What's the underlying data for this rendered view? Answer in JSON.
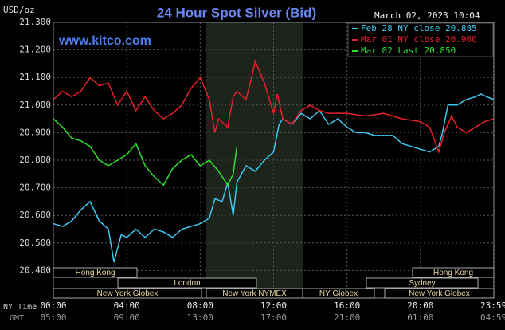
{
  "chart_data": {
    "type": "line",
    "title": "24 Hour Spot Silver (Bid)",
    "unit_label": "USD/oz",
    "timestamp": "March 02, 2023 10:04",
    "watermark": "www.kitco.com",
    "x_row_label": "NY Time",
    "x2_row_label": "GMT",
    "xlim": [
      0,
      24
    ],
    "xticks": [
      {
        "value": 0,
        "label": "00:00"
      },
      {
        "value": 4,
        "label": "04:00"
      },
      {
        "value": 8,
        "label": "08:00"
      },
      {
        "value": 12,
        "label": "12:00"
      },
      {
        "value": 16,
        "label": "16:00"
      },
      {
        "value": 20,
        "label": "20:00"
      },
      {
        "value": 23.98,
        "label": "23:59"
      }
    ],
    "x2ticks": [
      {
        "value": 0,
        "label": "05:00"
      },
      {
        "value": 4,
        "label": "09:00"
      },
      {
        "value": 8,
        "label": "13:00"
      },
      {
        "value": 12,
        "label": "17:00"
      },
      {
        "value": 16,
        "label": "21:00"
      },
      {
        "value": 20,
        "label": "01:00"
      },
      {
        "value": 23.98,
        "label": "04:59"
      }
    ],
    "ylim": [
      20.3,
      21.3
    ],
    "yticks": [
      {
        "value": 20.4,
        "label": "20.400"
      },
      {
        "value": 20.5,
        "label": "20.500"
      },
      {
        "value": 20.6,
        "label": "20.600"
      },
      {
        "value": 20.7,
        "label": "20.700"
      },
      {
        "value": 20.8,
        "label": "20.800"
      },
      {
        "value": 20.9,
        "label": "20.900"
      },
      {
        "value": 21.0,
        "label": "21.000"
      },
      {
        "value": 21.1,
        "label": "21.100"
      },
      {
        "value": 21.2,
        "label": "21.200"
      },
      {
        "value": 21.3,
        "label": "21.300"
      }
    ],
    "grid": true,
    "legend": "top-right",
    "sessions": [
      "Hong Kong",
      "London",
      "New York Globex",
      "New York NYMEX",
      "NY Globex",
      "Sydney",
      "Hong Kong",
      "New York Globex"
    ],
    "series": [
      {
        "name": "Feb 28 NY close 20.885",
        "color": "#3cc8f0",
        "x": [
          0,
          0.5,
          1,
          1.5,
          2,
          2.5,
          3,
          3.3,
          3.7,
          4,
          4.5,
          5,
          5.5,
          6,
          6.5,
          7,
          7.5,
          8,
          8.5,
          8.8,
          9.2,
          9.5,
          9.8,
          10,
          10.5,
          11,
          11.5,
          12,
          12.3,
          12.5,
          13,
          13.5,
          14,
          14.5,
          15,
          15.5,
          16,
          16.5,
          17,
          17.5,
          18,
          18.5,
          19,
          19.5,
          20,
          20.5,
          21,
          21.2,
          21.5,
          22,
          22.5,
          23,
          23.3,
          23.6,
          24
        ],
        "values": [
          20.57,
          20.56,
          20.58,
          20.62,
          20.65,
          20.58,
          20.55,
          20.43,
          20.53,
          20.52,
          20.55,
          20.52,
          20.55,
          20.54,
          20.52,
          20.55,
          20.56,
          20.57,
          20.59,
          20.66,
          20.65,
          20.72,
          20.6,
          20.72,
          20.78,
          20.76,
          20.8,
          20.83,
          20.93,
          20.95,
          20.93,
          20.97,
          20.95,
          20.98,
          20.93,
          20.95,
          20.92,
          20.9,
          20.9,
          20.89,
          20.89,
          20.89,
          20.86,
          20.85,
          20.84,
          20.83,
          20.85,
          20.9,
          21.0,
          21.0,
          21.02,
          21.03,
          21.04,
          21.03,
          21.02
        ]
      },
      {
        "name": "Mar 01 NY close 20.960",
        "color": "#e8202a",
        "x": [
          0,
          0.5,
          1,
          1.5,
          2,
          2.5,
          3,
          3.5,
          4,
          4.5,
          5,
          5.5,
          6,
          6.5,
          7,
          7.5,
          8,
          8.5,
          8.8,
          9,
          9.5,
          9.8,
          10,
          10.5,
          10.8,
          11,
          11.5,
          12,
          12.2,
          12.5,
          13,
          13.5,
          14,
          14.5,
          15,
          16,
          17,
          18,
          19,
          20,
          20.5,
          21,
          21.3,
          21.7,
          22,
          22.5,
          23,
          23.5,
          24
        ],
        "values": [
          21.02,
          21.05,
          21.03,
          21.05,
          21.1,
          21.07,
          21.08,
          21.0,
          21.05,
          20.98,
          21.03,
          20.98,
          20.95,
          20.97,
          21.0,
          21.06,
          21.1,
          21.02,
          20.9,
          20.95,
          20.92,
          21.03,
          21.05,
          21.02,
          21.1,
          21.16,
          21.08,
          20.97,
          21.04,
          20.95,
          20.93,
          20.98,
          21.0,
          20.98,
          20.97,
          20.97,
          20.96,
          20.97,
          20.95,
          20.94,
          20.92,
          20.83,
          20.9,
          20.96,
          20.92,
          20.9,
          20.92,
          20.94,
          20.95
        ]
      },
      {
        "name": "Mar 02 Last 20.850",
        "color": "#2ee02e",
        "x": [
          0,
          0.5,
          1,
          1.5,
          2,
          2.5,
          3,
          3.5,
          4,
          4.5,
          5,
          5.5,
          6,
          6.5,
          7,
          7.5,
          8,
          8.5,
          9,
          9.5,
          9.8,
          10
        ],
        "values": [
          20.95,
          20.92,
          20.88,
          20.87,
          20.85,
          20.8,
          20.78,
          20.8,
          20.82,
          20.86,
          20.78,
          20.74,
          20.71,
          20.77,
          20.8,
          20.82,
          20.78,
          20.8,
          20.76,
          20.71,
          20.75,
          20.85
        ]
      }
    ]
  }
}
